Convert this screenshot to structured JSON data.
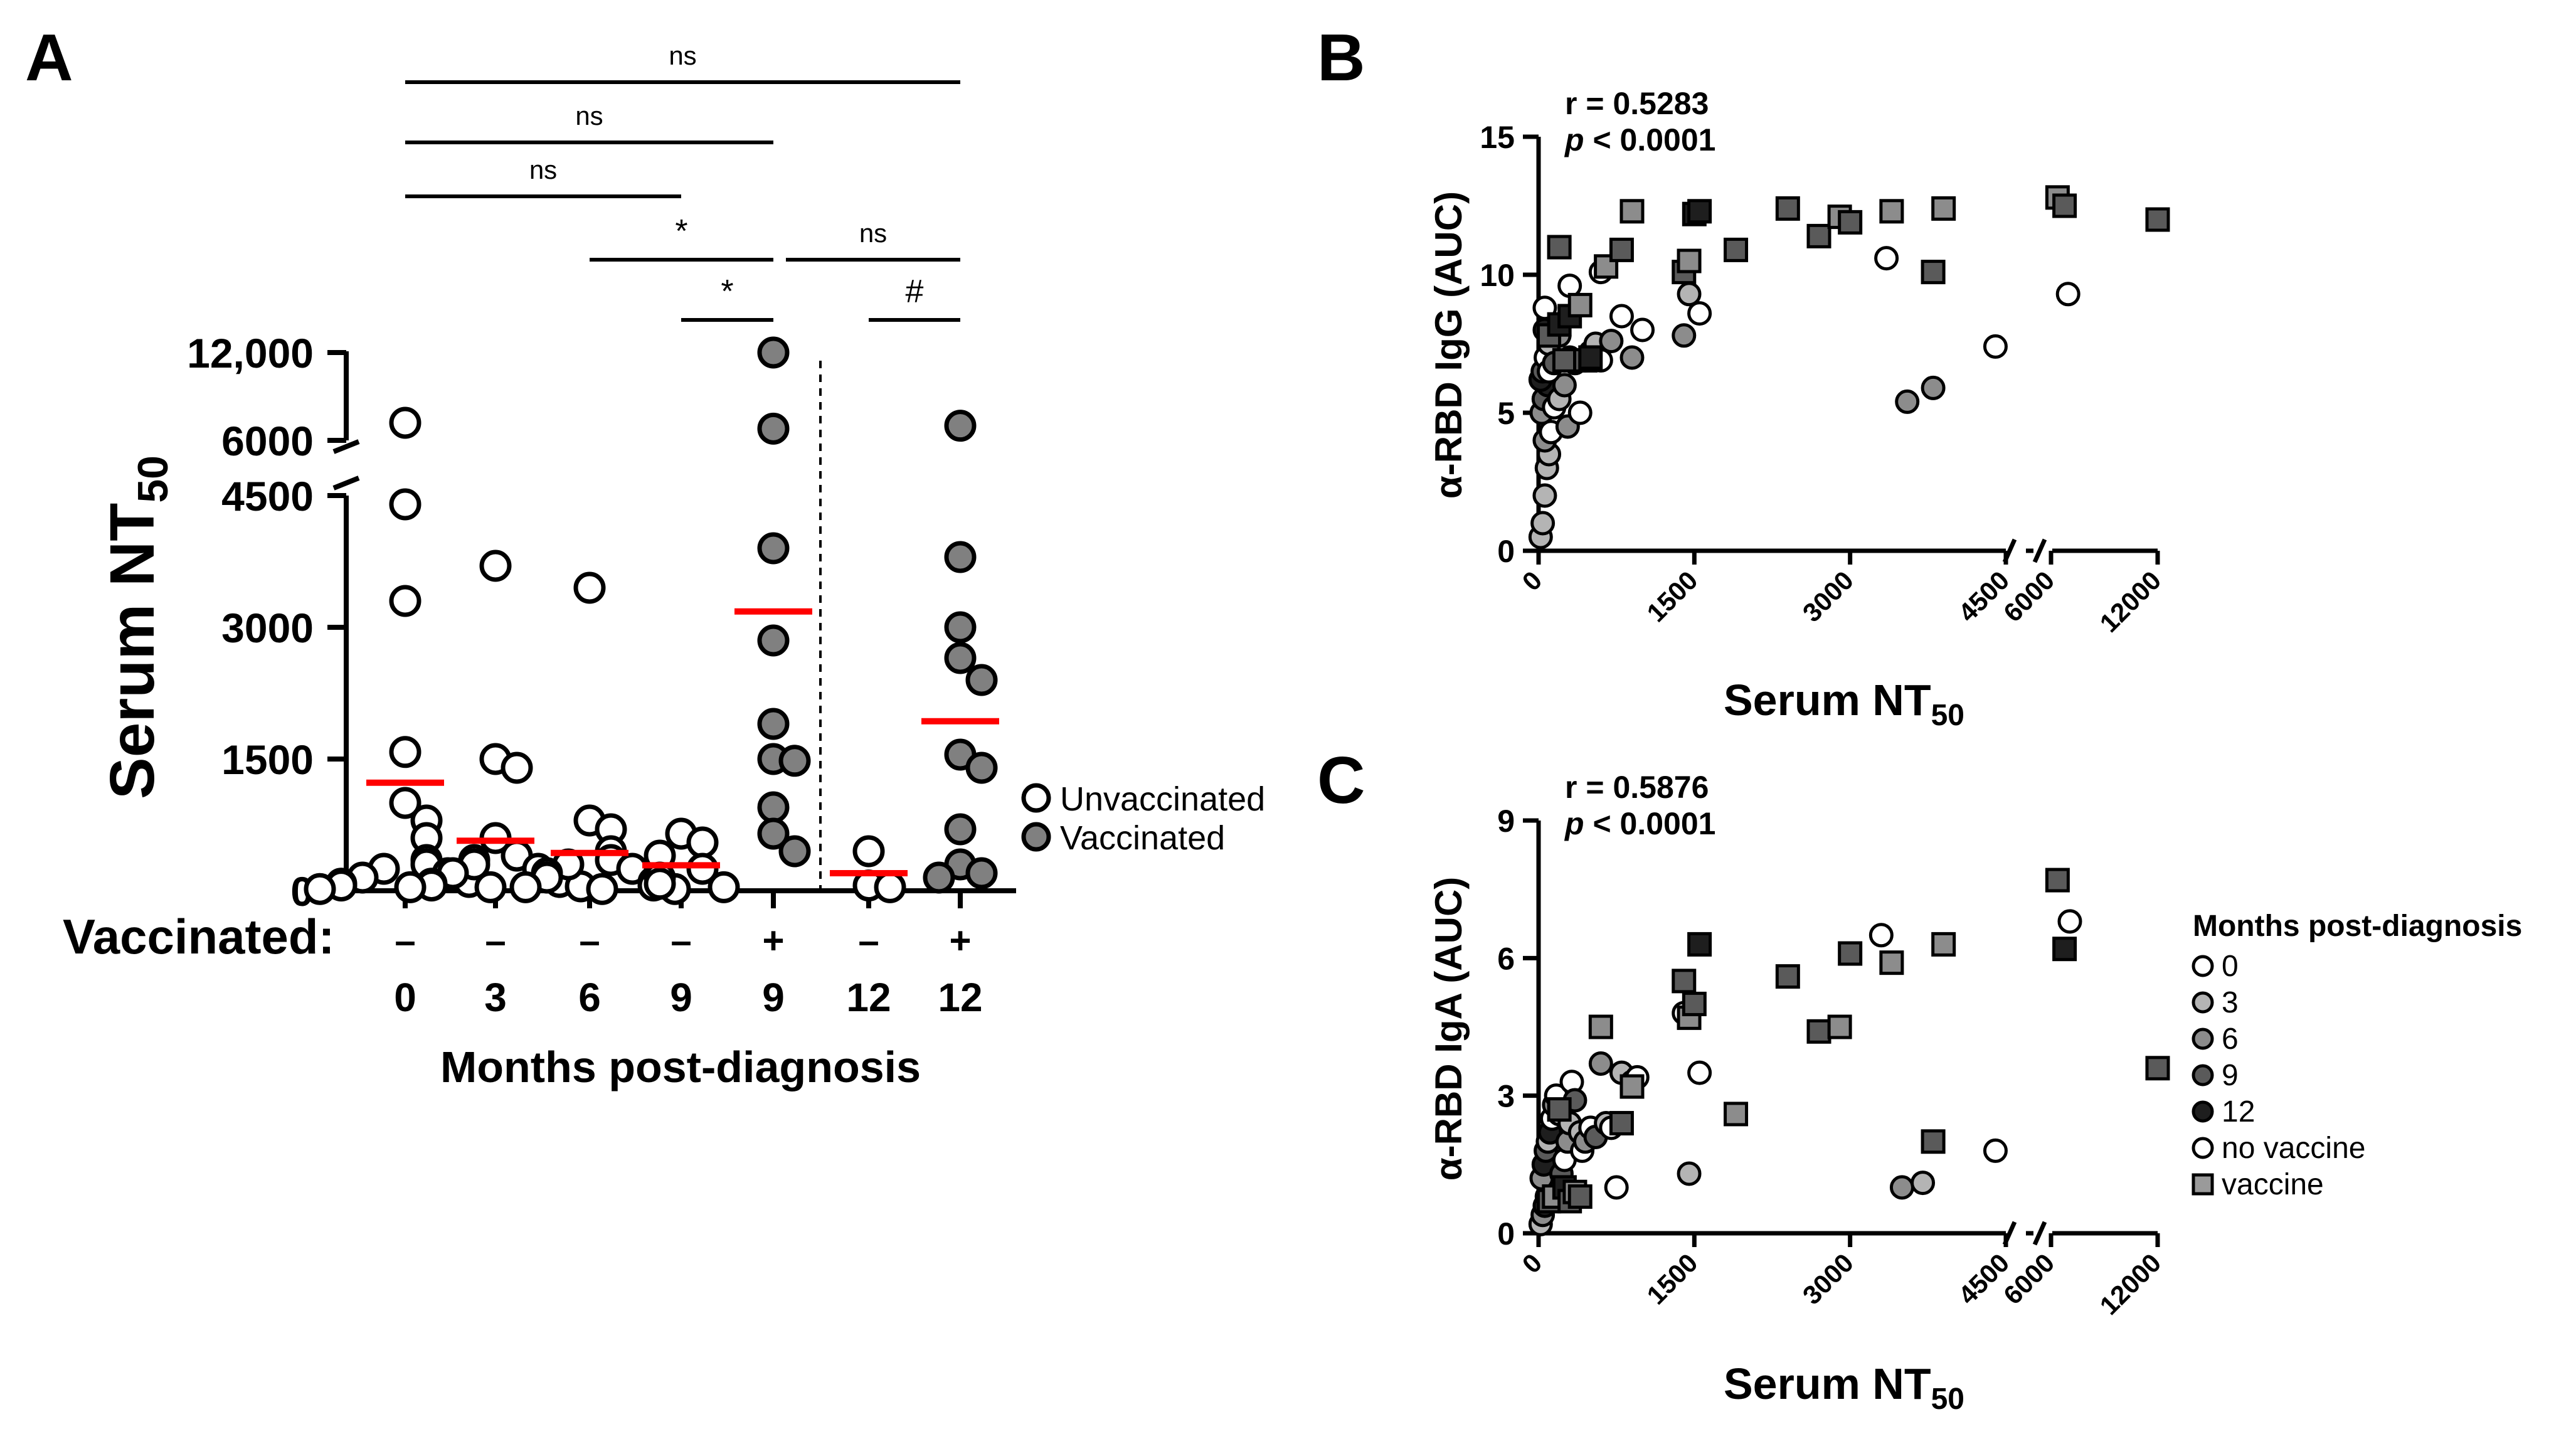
{
  "chart_data": [
    {
      "panel": "A",
      "type": "scatter",
      "ylabel": "Serum NT",
      "ylabel_sub": "50",
      "xlabel": "Months post-diagnosis",
      "row_label": "Vaccinated:",
      "yticks": [
        "0",
        "1500",
        "3000",
        "4500",
        "6000",
        "12,000"
      ],
      "y_segments": [
        [
          0,
          4500
        ],
        [
          6000,
          12000
        ]
      ],
      "legend": [
        "Unvaccinated",
        "Vaccinated"
      ],
      "groups": [
        {
          "month": "0",
          "vacc": "–",
          "filled": false,
          "mean": 1230,
          "values": [
            7200,
            4400,
            3300,
            1580,
            1000,
            800,
            600,
            350,
            300,
            250,
            200,
            150,
            100,
            80,
            60,
            40,
            20
          ]
        },
        {
          "month": "3",
          "vacc": "–",
          "filled": false,
          "mean": 570,
          "values": [
            3700,
            1500,
            1400,
            600,
            400,
            350,
            300,
            250,
            200,
            150,
            100,
            80,
            60,
            50,
            40,
            20
          ]
        },
        {
          "month": "6",
          "vacc": "–",
          "filled": false,
          "mean": 430,
          "values": [
            3450,
            800,
            700,
            450,
            350,
            300,
            250,
            200,
            150,
            100,
            60,
            40,
            20
          ]
        },
        {
          "month": "9",
          "vacc": "–",
          "filled": false,
          "mean": 290,
          "values": [
            650,
            550,
            400,
            250,
            150,
            80,
            40
          ]
        },
        {
          "month": "9",
          "vacc": "+",
          "filled": true,
          "mean": 3180,
          "values": [
            12000,
            6800,
            3900,
            2850,
            1900,
            1500,
            1480,
            950,
            650,
            450
          ]
        },
        {
          "month": "12",
          "vacc": "–",
          "filled": false,
          "mean": 200,
          "values": [
            450,
            60,
            40
          ]
        },
        {
          "month": "12",
          "vacc": "+",
          "filled": true,
          "mean": 1930,
          "values": [
            7000,
            3800,
            3000,
            2650,
            2400,
            1550,
            1400,
            700,
            300,
            200,
            150
          ]
        }
      ],
      "significance": [
        {
          "label": "ns",
          "from": 0,
          "to": 6
        },
        {
          "label": "ns",
          "from": 0,
          "to": 4
        },
        {
          "label": "ns",
          "from": 0,
          "to": 3
        },
        {
          "label": "*",
          "from": 2,
          "to": 4
        },
        {
          "label": "ns",
          "from": 4,
          "to": 6
        },
        {
          "label": "*",
          "from": 3,
          "to": 4
        },
        {
          "label": "#",
          "from": 5,
          "to": 6
        }
      ]
    },
    {
      "panel": "B",
      "type": "scatter",
      "ylabel": "α-RBD IgG (AUC)",
      "xlabel": "Serum NT",
      "xlabel_sub": "50",
      "yticks": [
        0,
        5,
        10,
        15
      ],
      "ylim": [
        0,
        15
      ],
      "xticks": [
        "0",
        "1500",
        "3000",
        "4500",
        "6000",
        "12000"
      ],
      "stat_r": "r = 0.5283",
      "stat_p_symbol": "p",
      "stat_p_rest": " < 0.0001",
      "points": [
        [
          20,
          0.5,
          1,
          "c"
        ],
        [
          40,
          1.0,
          1,
          "c"
        ],
        [
          60,
          2.0,
          1,
          "c"
        ],
        [
          80,
          3.0,
          1,
          "c"
        ],
        [
          100,
          3.5,
          1,
          "c"
        ],
        [
          60,
          4.0,
          2,
          "c"
        ],
        [
          120,
          4.3,
          0,
          "c"
        ],
        [
          30,
          5.0,
          2,
          "c"
        ],
        [
          50,
          5.5,
          3,
          "c"
        ],
        [
          90,
          6.0,
          4,
          "c"
        ],
        [
          20,
          6.2,
          4,
          "c"
        ],
        [
          40,
          6.5,
          3,
          "c"
        ],
        [
          70,
          7.0,
          0,
          "c"
        ],
        [
          100,
          7.5,
          1,
          "c"
        ],
        [
          60,
          8.0,
          4,
          "c"
        ],
        [
          150,
          5.2,
          0,
          "c"
        ],
        [
          200,
          5.5,
          1,
          "c"
        ],
        [
          250,
          6.0,
          2,
          "c"
        ],
        [
          280,
          4.5,
          2,
          "c"
        ],
        [
          300,
          7.0,
          3,
          "c"
        ],
        [
          350,
          6.8,
          0,
          "c"
        ],
        [
          400,
          5.0,
          0,
          "c"
        ],
        [
          450,
          6.9,
          3,
          "c"
        ],
        [
          500,
          7.2,
          2,
          "c"
        ],
        [
          550,
          7.5,
          1,
          "c"
        ],
        [
          600,
          6.9,
          0,
          "c"
        ],
        [
          700,
          7.6,
          2,
          "c"
        ],
        [
          800,
          8.5,
          0,
          "c"
        ],
        [
          900,
          7.0,
          2,
          "c"
        ],
        [
          1000,
          8.0,
          0,
          "c"
        ],
        [
          1400,
          7.8,
          2,
          "c"
        ],
        [
          1450,
          9.3,
          1,
          "c"
        ],
        [
          1550,
          8.6,
          0,
          "c"
        ],
        [
          60,
          8.8,
          0,
          "c"
        ],
        [
          100,
          6.5,
          0,
          "c"
        ],
        [
          150,
          6.8,
          3,
          "c"
        ],
        [
          200,
          7.8,
          2,
          "c"
        ],
        [
          300,
          9.6,
          0,
          "c"
        ],
        [
          600,
          10.1,
          0,
          "c"
        ],
        [
          3350,
          10.6,
          0,
          "c"
        ],
        [
          3550,
          5.4,
          2,
          "c"
        ],
        [
          3800,
          5.9,
          2,
          "c"
        ],
        [
          4400,
          7.4,
          0,
          "c"
        ],
        [
          6900,
          9.3,
          0,
          "c"
        ],
        [
          100,
          7.8,
          3,
          "s"
        ],
        [
          200,
          8.2,
          4,
          "s"
        ],
        [
          250,
          6.9,
          3,
          "s"
        ],
        [
          300,
          8.5,
          4,
          "s"
        ],
        [
          400,
          8.9,
          2,
          "s"
        ],
        [
          450,
          6.9,
          3,
          "s"
        ],
        [
          500,
          7.0,
          4,
          "s"
        ],
        [
          200,
          11.0,
          3,
          "s"
        ],
        [
          650,
          10.3,
          2,
          "s"
        ],
        [
          800,
          10.9,
          3,
          "s"
        ],
        [
          900,
          12.3,
          2,
          "s"
        ],
        [
          1400,
          10.1,
          3,
          "s"
        ],
        [
          1450,
          10.5,
          2,
          "s"
        ],
        [
          1500,
          12.2,
          4,
          "s"
        ],
        [
          1550,
          12.3,
          4,
          "s"
        ],
        [
          1900,
          10.9,
          3,
          "s"
        ],
        [
          2400,
          12.4,
          3,
          "s"
        ],
        [
          2700,
          11.4,
          3,
          "s"
        ],
        [
          2900,
          12.1,
          2,
          "s"
        ],
        [
          3000,
          11.9,
          3,
          "s"
        ],
        [
          3400,
          12.3,
          2,
          "s"
        ],
        [
          3800,
          10.1,
          3,
          "s"
        ],
        [
          3900,
          12.4,
          2,
          "s"
        ],
        [
          6300,
          12.8,
          2,
          "s"
        ],
        [
          6700,
          12.5,
          3,
          "s"
        ],
        [
          12000,
          12.0,
          3,
          "s"
        ]
      ]
    },
    {
      "panel": "C",
      "type": "scatter",
      "ylabel": "α-RBD IgA (AUC)",
      "xlabel": "Serum NT",
      "xlabel_sub": "50",
      "yticks": [
        0,
        3,
        6,
        9
      ],
      "ylim": [
        0,
        9
      ],
      "xticks": [
        "0",
        "1500",
        "3000",
        "4500",
        "6000",
        "12000"
      ],
      "stat_r": "r = 0.5876",
      "stat_p_symbol": "p",
      "stat_p_rest": " < 0.0001",
      "points": [
        [
          20,
          0.2,
          1,
          "c"
        ],
        [
          40,
          0.4,
          2,
          "c"
        ],
        [
          60,
          0.6,
          4,
          "c"
        ],
        [
          80,
          0.8,
          3,
          "c"
        ],
        [
          100,
          1.0,
          0,
          "c"
        ],
        [
          30,
          1.2,
          2,
          "c"
        ],
        [
          50,
          1.5,
          4,
          "c"
        ],
        [
          70,
          1.8,
          3,
          "c"
        ],
        [
          90,
          2.0,
          1,
          "c"
        ],
        [
          110,
          2.2,
          4,
          "c"
        ],
        [
          130,
          2.5,
          0,
          "c"
        ],
        [
          150,
          2.8,
          2,
          "c"
        ],
        [
          170,
          3.0,
          0,
          "c"
        ],
        [
          200,
          2.6,
          1,
          "c"
        ],
        [
          220,
          1.3,
          3,
          "c"
        ],
        [
          250,
          1.6,
          0,
          "c"
        ],
        [
          280,
          2.0,
          2,
          "c"
        ],
        [
          300,
          2.4,
          1,
          "c"
        ],
        [
          320,
          3.3,
          0,
          "c"
        ],
        [
          350,
          2.9,
          3,
          "c"
        ],
        [
          400,
          2.2,
          1,
          "c"
        ],
        [
          420,
          1.8,
          0,
          "c"
        ],
        [
          450,
          2.0,
          2,
          "c"
        ],
        [
          500,
          2.3,
          0,
          "c"
        ],
        [
          550,
          2.1,
          3,
          "c"
        ],
        [
          600,
          3.7,
          2,
          "c"
        ],
        [
          650,
          2.4,
          1,
          "c"
        ],
        [
          700,
          2.3,
          0,
          "c"
        ],
        [
          750,
          1.0,
          0,
          "c"
        ],
        [
          800,
          3.5,
          1,
          "c"
        ],
        [
          900,
          3.3,
          2,
          "c"
        ],
        [
          950,
          3.4,
          0,
          "c"
        ],
        [
          1400,
          4.8,
          0,
          "c"
        ],
        [
          1450,
          1.3,
          1,
          "c"
        ],
        [
          1550,
          3.5,
          0,
          "c"
        ],
        [
          3300,
          6.5,
          0,
          "c"
        ],
        [
          3500,
          1.0,
          2,
          "c"
        ],
        [
          3700,
          1.1,
          1,
          "c"
        ],
        [
          4400,
          1.8,
          0,
          "c"
        ],
        [
          7000,
          6.8,
          0,
          "c"
        ],
        [
          100,
          0.7,
          3,
          "s"
        ],
        [
          150,
          0.8,
          2,
          "s"
        ],
        [
          200,
          2.7,
          3,
          "s"
        ],
        [
          250,
          1.0,
          4,
          "s"
        ],
        [
          300,
          0.7,
          3,
          "s"
        ],
        [
          350,
          0.9,
          2,
          "s"
        ],
        [
          400,
          0.8,
          3,
          "s"
        ],
        [
          600,
          4.5,
          2,
          "s"
        ],
        [
          800,
          2.4,
          3,
          "s"
        ],
        [
          900,
          3.2,
          2,
          "s"
        ],
        [
          1400,
          5.5,
          3,
          "s"
        ],
        [
          1450,
          4.7,
          2,
          "s"
        ],
        [
          1500,
          5.0,
          3,
          "s"
        ],
        [
          1550,
          6.3,
          4,
          "s"
        ],
        [
          1900,
          2.6,
          2,
          "s"
        ],
        [
          2400,
          5.6,
          3,
          "s"
        ],
        [
          2700,
          4.4,
          3,
          "s"
        ],
        [
          2900,
          4.5,
          2,
          "s"
        ],
        [
          3000,
          6.1,
          3,
          "s"
        ],
        [
          3400,
          5.9,
          2,
          "s"
        ],
        [
          3800,
          2.0,
          3,
          "s"
        ],
        [
          3900,
          6.3,
          2,
          "s"
        ],
        [
          6300,
          7.7,
          3,
          "s"
        ],
        [
          6700,
          6.2,
          4,
          "s"
        ],
        [
          12000,
          3.6,
          3,
          "s"
        ]
      ]
    }
  ],
  "legend_c": {
    "title": "Months post-diagnosis",
    "items": [
      "0",
      "3",
      "6",
      "9",
      "12",
      "no vaccine",
      "vaccine"
    ]
  },
  "colors": {
    "mean_line": "#ff0000",
    "filled_marker": "#808080",
    "month_shades": [
      "#ffffff",
      "#b4b4b4",
      "#8c8c8c",
      "#5a5a5a",
      "#1e1e1e"
    ],
    "vaccine_square": "#9a9a9a"
  }
}
